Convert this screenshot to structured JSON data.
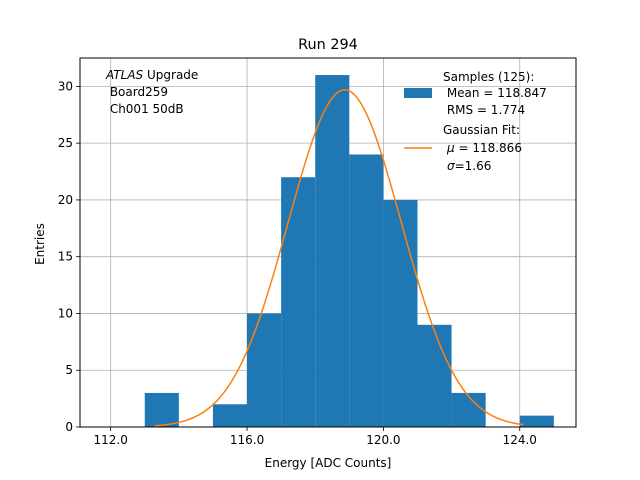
{
  "chart_data": {
    "type": "bar",
    "title": "Run 294",
    "xlabel": "Energy [ADC Counts]",
    "ylabel": "Entries",
    "xlim": [
      111.1,
      125.65
    ],
    "ylim": [
      0,
      32.5
    ],
    "xticks": [
      112,
      116,
      120,
      124
    ],
    "xtick_labels": [
      "112.0",
      "116.0",
      "120.0",
      "124.0"
    ],
    "yticks": [
      0,
      5,
      10,
      15,
      20,
      25,
      30
    ],
    "ytick_labels": [
      "0",
      "5",
      "10",
      "15",
      "20",
      "25",
      "30"
    ],
    "grid": true,
    "bin_width": 1,
    "series": [
      {
        "name": "Samples (125):",
        "kind": "histogram",
        "color": "#1f77b4",
        "bins": [
          {
            "x0": 113,
            "x1": 114,
            "count": 3
          },
          {
            "x0": 114,
            "x1": 115,
            "count": 0
          },
          {
            "x0": 115,
            "x1": 116,
            "count": 2
          },
          {
            "x0": 116,
            "x1": 117,
            "count": 10
          },
          {
            "x0": 117,
            "x1": 118,
            "count": 22
          },
          {
            "x0": 118,
            "x1": 119,
            "count": 31
          },
          {
            "x0": 119,
            "x1": 120,
            "count": 24
          },
          {
            "x0": 120,
            "x1": 121,
            "count": 20
          },
          {
            "x0": 121,
            "x1": 122,
            "count": 9
          },
          {
            "x0": 122,
            "x1": 123,
            "count": 3
          },
          {
            "x0": 123,
            "x1": 124,
            "count": 0
          },
          {
            "x0": 124,
            "x1": 125,
            "count": 1
          }
        ]
      },
      {
        "name": "Gaussian Fit:",
        "kind": "gaussian",
        "color": "#ff7f0e",
        "mu": 118.866,
        "sigma": 1.66,
        "amplitude": 29.7,
        "x_range": [
          113.3,
          124.1
        ]
      }
    ],
    "annotation": {
      "italic": "ATLAS",
      "line1_rest": " Upgrade",
      "line2": " Board259",
      "line3": " Ch001 50dB"
    },
    "legend": {
      "placement": "top-right",
      "samples_lines": [
        "Samples (125):",
        " Mean = 118.847",
        " RMS = 1.774"
      ],
      "fit_title": "Gaussian Fit:",
      "fit_mu_symbol": "μ",
      "fit_mu_value": " = 118.866",
      "fit_sigma_symbol": "σ",
      "fit_sigma_value": "=1.66"
    }
  }
}
